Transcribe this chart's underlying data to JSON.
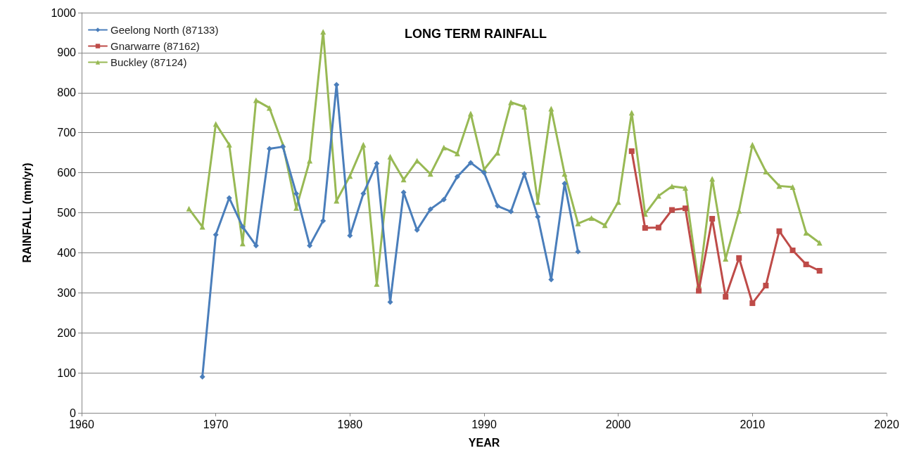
{
  "chart_data": {
    "type": "line",
    "title": "LONG TERM RAINFALL",
    "xlabel": "YEAR",
    "ylabel": "RAINFALL (mm/yr)",
    "xlim": [
      1960,
      2020
    ],
    "xticks": [
      1960,
      1970,
      1980,
      1990,
      2000,
      2010,
      2020
    ],
    "ylim": [
      0,
      1000
    ],
    "yticks": [
      0,
      100,
      200,
      300,
      400,
      500,
      600,
      700,
      800,
      900,
      1000
    ],
    "grid": "y",
    "legend": "top left",
    "line_style": "solid",
    "series": [
      {
        "name": "Geelong North (87133)",
        "color": "#4a7ebb",
        "marker": "diamond",
        "x": [
          1969,
          1970,
          1971,
          1972,
          1973,
          1974,
          1975,
          1976,
          1977,
          1978,
          1979,
          1980,
          1981,
          1982,
          1983,
          1984,
          1985,
          1986,
          1987,
          1988,
          1989,
          1990,
          1991,
          1992,
          1993,
          1994,
          1995,
          1996,
          1997
        ],
        "values": [
          90,
          445,
          537,
          465,
          418,
          660,
          665,
          548,
          418,
          480,
          820,
          443,
          548,
          623,
          277,
          551,
          457,
          509,
          533,
          590,
          625,
          600,
          517,
          503,
          597,
          490,
          333,
          573,
          403
        ]
      },
      {
        "name": "Gnarwarre (87162)",
        "color": "#be4b48",
        "marker": "square",
        "x": [
          2001,
          2002,
          2003,
          2004,
          2005,
          2006,
          2007,
          2008,
          2009,
          2010,
          2011,
          2012,
          2013,
          2014,
          2015
        ],
        "values": [
          654,
          462,
          463,
          507,
          511,
          305,
          485,
          290,
          387,
          274,
          318,
          454,
          406,
          371,
          355
        ]
      },
      {
        "name": "Buckley (87124)",
        "color": "#98b954",
        "marker": "triangle",
        "x": [
          1968,
          1969,
          1970,
          1971,
          1972,
          1973,
          1974,
          1975,
          1976,
          1977,
          1978,
          1979,
          1980,
          1981,
          1982,
          1983,
          1984,
          1985,
          1986,
          1987,
          1988,
          1989,
          1990,
          1991,
          1992,
          1993,
          1994,
          1995,
          1996,
          1997,
          1998,
          1999,
          2000,
          2001,
          2002,
          2003,
          2004,
          2005,
          2006,
          2007,
          2008,
          2009,
          2010,
          2011,
          2012,
          2013,
          2014,
          2015
        ],
        "values": [
          510,
          465,
          722,
          670,
          423,
          781,
          762,
          670,
          512,
          630,
          952,
          530,
          592,
          670,
          322,
          640,
          583,
          630,
          597,
          663,
          648,
          748,
          608,
          650,
          776,
          765,
          527,
          760,
          597,
          473,
          487,
          469,
          527,
          750,
          497,
          542,
          566,
          562,
          320,
          585,
          385,
          505,
          670,
          603,
          567,
          564,
          450,
          425
        ]
      }
    ]
  }
}
